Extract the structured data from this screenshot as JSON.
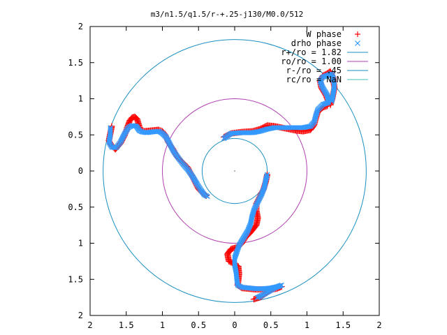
{
  "chart_data": {
    "type": "scatter",
    "title": "m3/n1.5/q1.5/r-+.25-j130/M0.0/512",
    "xlabel": "",
    "ylabel": "",
    "xlim": [
      2,
      -2
    ],
    "ylim": [
      -2,
      2
    ],
    "grid": false,
    "legend_position": "top-right",
    "x_ticks": [
      2,
      1.5,
      1,
      0.5,
      0,
      0.5,
      1,
      1.5,
      2
    ],
    "x_tick_values": [
      -2,
      -1.5,
      -1,
      -0.5,
      0,
      0.5,
      1,
      1.5,
      2
    ],
    "y_ticks": [
      2,
      1.5,
      1,
      0.5,
      0,
      0.5,
      1,
      1.5,
      2
    ],
    "y_tick_values": [
      2,
      1.5,
      1,
      0.5,
      0,
      -0.5,
      -1,
      -1.5,
      -2
    ],
    "legend": [
      {
        "label": "W phase",
        "marker": "+",
        "color": "#ff0000"
      },
      {
        "label": "drho phase",
        "marker": "x",
        "color": "#3399ff"
      },
      {
        "label": "r+/ro = 1.82",
        "marker": "line",
        "color": "#1a8fc0"
      },
      {
        "label": "ro/ro = 1.00",
        "marker": "line",
        "color": "#b040b0"
      },
      {
        "label": "r-/ro = .45",
        "marker": "line",
        "color": "#1a8fc0"
      },
      {
        "label": "rc/ro = NaN",
        "marker": "line",
        "color": "#40c0c0"
      }
    ],
    "circles": [
      {
        "name": "r+/ro = 1.82",
        "radius": 1.82,
        "color": "#1a8fc0"
      },
      {
        "name": "ro/ro = 1.00",
        "radius": 1.0,
        "color": "#b040b0"
      },
      {
        "name": "r-/ro = .45",
        "radius": 0.45,
        "color": "#1a8fc0"
      }
    ],
    "series": [
      {
        "name": "W phase",
        "color": "#ff0000",
        "arms": [
          [
            [
              -0.15,
              0.47
            ],
            [
              -0.05,
              0.52
            ],
            [
              0.1,
              0.54
            ],
            [
              0.25,
              0.55
            ],
            [
              0.35,
              0.58
            ],
            [
              0.45,
              0.63
            ],
            [
              0.55,
              0.62
            ],
            [
              0.65,
              0.6
            ],
            [
              0.75,
              0.58
            ],
            [
              0.85,
              0.56
            ],
            [
              0.95,
              0.55
            ],
            [
              1.05,
              0.57
            ],
            [
              1.1,
              0.64
            ],
            [
              1.12,
              0.72
            ],
            [
              1.15,
              0.82
            ],
            [
              1.22,
              0.88
            ],
            [
              1.28,
              0.9
            ],
            [
              1.3,
              0.95
            ],
            [
              1.26,
              1.05
            ],
            [
              1.2,
              1.15
            ],
            [
              1.18,
              1.25
            ],
            [
              1.22,
              1.32
            ],
            [
              1.28,
              1.35
            ],
            [
              1.32,
              1.38
            ],
            [
              1.36,
              1.3
            ],
            [
              1.38,
              1.15
            ],
            [
              1.35,
              1.0
            ],
            [
              1.32,
              0.9
            ]
          ],
          [
            [
              -1.7,
              0.62
            ],
            [
              -1.72,
              0.52
            ],
            [
              -1.74,
              0.42
            ],
            [
              -1.7,
              0.35
            ],
            [
              -1.65,
              0.3
            ],
            [
              -1.58,
              0.38
            ],
            [
              -1.52,
              0.5
            ],
            [
              -1.48,
              0.62
            ],
            [
              -1.45,
              0.7
            ],
            [
              -1.42,
              0.74
            ],
            [
              -1.38,
              0.75
            ],
            [
              -1.35,
              0.72
            ],
            [
              -1.32,
              0.62
            ],
            [
              -1.3,
              0.57
            ],
            [
              -1.25,
              0.55
            ],
            [
              -1.15,
              0.56
            ],
            [
              -1.05,
              0.57
            ],
            [
              -1.0,
              0.55
            ],
            [
              -0.96,
              0.5
            ],
            [
              -0.92,
              0.4
            ],
            [
              -0.85,
              0.3
            ],
            [
              -0.8,
              0.2
            ],
            [
              -0.72,
              0.12
            ],
            [
              -0.65,
              0.05
            ],
            [
              -0.6,
              -0.05
            ],
            [
              -0.55,
              -0.15
            ],
            [
              -0.5,
              -0.25
            ],
            [
              -0.45,
              -0.3
            ],
            [
              -0.38,
              -0.35
            ]
          ],
          [
            [
              0.45,
              -0.05
            ],
            [
              0.43,
              -0.15
            ],
            [
              0.4,
              -0.25
            ],
            [
              0.35,
              -0.35
            ],
            [
              0.3,
              -0.45
            ],
            [
              0.3,
              -0.55
            ],
            [
              0.32,
              -0.65
            ],
            [
              0.3,
              -0.75
            ],
            [
              0.22,
              -0.85
            ],
            [
              0.15,
              -0.92
            ],
            [
              0.1,
              -1.0
            ],
            [
              0.05,
              -1.05
            ],
            [
              -0.05,
              -1.08
            ],
            [
              -0.1,
              -1.15
            ],
            [
              -0.08,
              -1.25
            ],
            [
              -0.02,
              -1.28
            ],
            [
              0.05,
              -1.32
            ],
            [
              0.06,
              -1.42
            ],
            [
              0.05,
              -1.52
            ],
            [
              0.04,
              -1.58
            ],
            [
              0.1,
              -1.62
            ],
            [
              0.2,
              -1.63
            ],
            [
              0.3,
              -1.64
            ],
            [
              0.4,
              -1.64
            ],
            [
              0.5,
              -1.64
            ],
            [
              0.58,
              -1.63
            ],
            [
              0.65,
              -1.6
            ],
            [
              0.55,
              -1.62
            ],
            [
              0.45,
              -1.68
            ],
            [
              0.35,
              -1.75
            ],
            [
              0.25,
              -1.78
            ]
          ]
        ]
      },
      {
        "name": "drho phase",
        "color": "#3399ff",
        "arms": [
          [
            [
              -0.15,
              0.45
            ],
            [
              -0.05,
              0.52
            ],
            [
              0.1,
              0.53
            ],
            [
              0.25,
              0.53
            ],
            [
              0.35,
              0.55
            ],
            [
              0.45,
              0.58
            ],
            [
              0.55,
              0.6
            ],
            [
              0.65,
              0.6
            ],
            [
              0.75,
              0.6
            ],
            [
              0.85,
              0.6
            ],
            [
              0.95,
              0.6
            ],
            [
              1.05,
              0.62
            ],
            [
              1.1,
              0.68
            ],
            [
              1.12,
              0.76
            ],
            [
              1.15,
              0.85
            ],
            [
              1.22,
              0.92
            ],
            [
              1.3,
              0.95
            ],
            [
              1.28,
              1.05
            ],
            [
              1.22,
              1.15
            ],
            [
              1.18,
              1.25
            ],
            [
              1.22,
              1.3
            ],
            [
              1.3,
              1.33
            ],
            [
              1.34,
              1.35
            ],
            [
              1.36,
              1.3
            ],
            [
              1.38,
              1.18
            ],
            [
              1.36,
              1.05
            ],
            [
              1.34,
              0.95
            ]
          ],
          [
            [
              -1.72,
              0.6
            ],
            [
              -1.72,
              0.5
            ],
            [
              -1.74,
              0.4
            ],
            [
              -1.7,
              0.33
            ],
            [
              -1.64,
              0.32
            ],
            [
              -1.58,
              0.4
            ],
            [
              -1.52,
              0.52
            ],
            [
              -1.47,
              0.6
            ],
            [
              -1.42,
              0.63
            ],
            [
              -1.36,
              0.62
            ],
            [
              -1.32,
              0.56
            ],
            [
              -1.28,
              0.54
            ],
            [
              -1.22,
              0.53
            ],
            [
              -1.15,
              0.54
            ],
            [
              -1.05,
              0.55
            ],
            [
              -1.0,
              0.52
            ],
            [
              -0.95,
              0.47
            ],
            [
              -0.9,
              0.38
            ],
            [
              -0.85,
              0.28
            ],
            [
              -0.78,
              0.18
            ],
            [
              -0.72,
              0.1
            ],
            [
              -0.65,
              0.02
            ],
            [
              -0.58,
              -0.08
            ],
            [
              -0.52,
              -0.18
            ],
            [
              -0.47,
              -0.26
            ],
            [
              -0.42,
              -0.33
            ],
            [
              -0.36,
              -0.36
            ]
          ],
          [
            [
              0.45,
              -0.05
            ],
            [
              0.43,
              -0.13
            ],
            [
              0.41,
              -0.23
            ],
            [
              0.37,
              -0.33
            ],
            [
              0.32,
              -0.43
            ],
            [
              0.27,
              -0.53
            ],
            [
              0.24,
              -0.63
            ],
            [
              0.22,
              -0.73
            ],
            [
              0.18,
              -0.83
            ],
            [
              0.12,
              -0.93
            ],
            [
              0.06,
              -1.03
            ],
            [
              0.03,
              -1.12
            ],
            [
              0.0,
              -1.2
            ],
            [
              0.0,
              -1.3
            ],
            [
              0.02,
              -1.4
            ],
            [
              0.03,
              -1.5
            ],
            [
              0.04,
              -1.58
            ],
            [
              0.1,
              -1.61
            ],
            [
              0.2,
              -1.62
            ],
            [
              0.3,
              -1.63
            ],
            [
              0.4,
              -1.63
            ],
            [
              0.5,
              -1.62
            ],
            [
              0.6,
              -1.6
            ],
            [
              0.65,
              -1.58
            ],
            [
              0.55,
              -1.62
            ],
            [
              0.45,
              -1.68
            ],
            [
              0.38,
              -1.72
            ],
            [
              0.3,
              -1.76
            ]
          ]
        ]
      }
    ]
  }
}
